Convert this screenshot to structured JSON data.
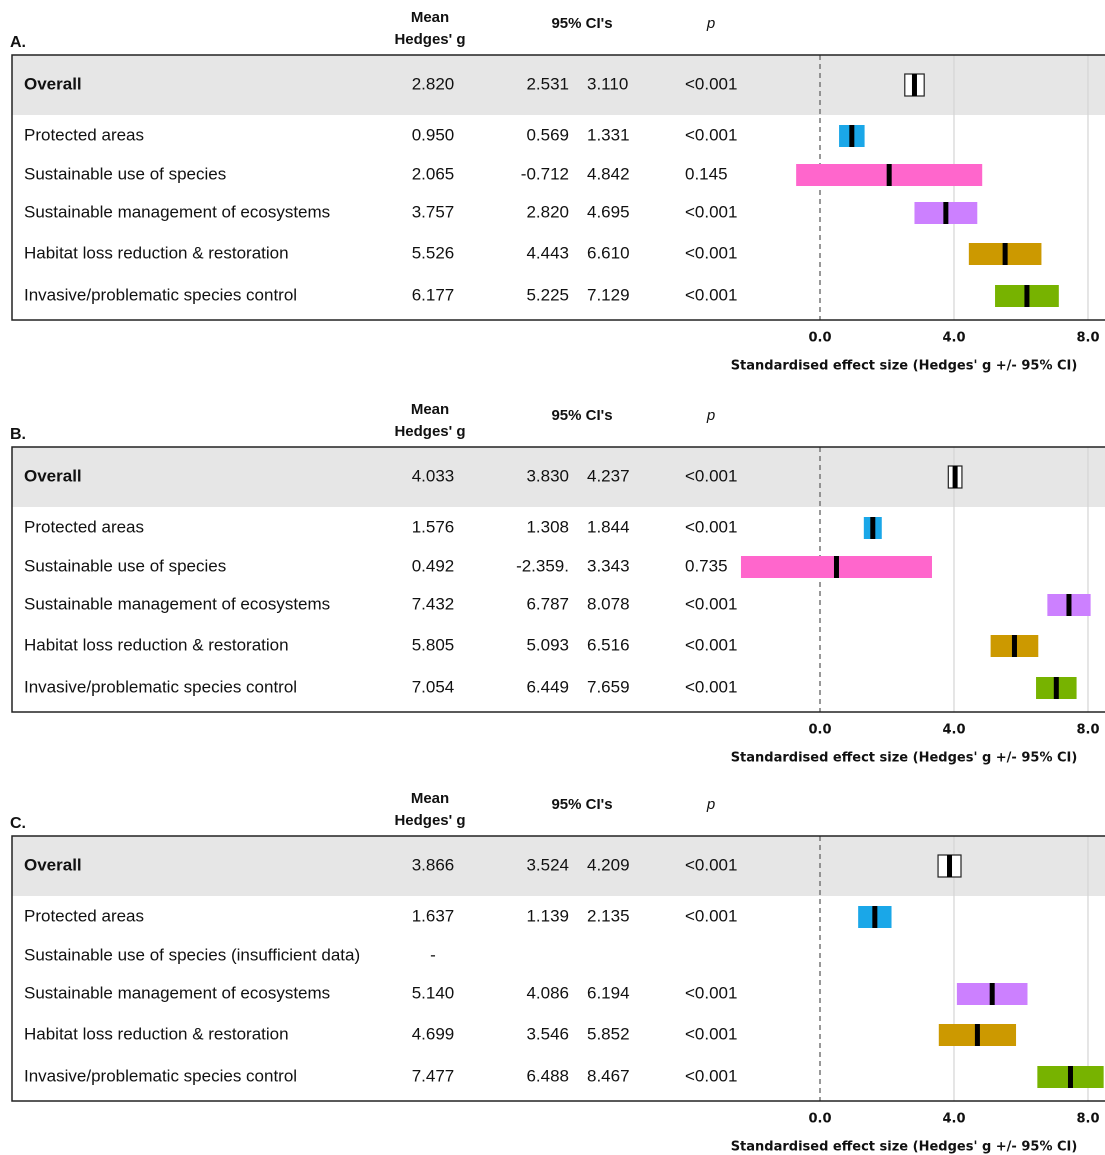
{
  "chart_data": [
    {
      "type": "forest",
      "panel": "A.",
      "mean_header": [
        "Mean",
        "Hedges' g"
      ],
      "ci_header": "95% CI's",
      "p_header": "p",
      "categories": [
        "Overall",
        "Protected areas",
        "Sustainable use of species",
        "Sustainable management of ecosystems",
        "Habitat loss reduction & restoration",
        "Invasive/problematic species control"
      ],
      "values": [
        2.82,
        0.95,
        2.065,
        3.757,
        5.526,
        6.177
      ],
      "value_labels": [
        "2.820",
        "0.950",
        "2.065",
        "3.757",
        "5.526",
        "6.177"
      ],
      "ci_low": [
        2.531,
        0.569,
        -0.712,
        2.82,
        4.443,
        5.225
      ],
      "ci_low_labels": [
        "2.531",
        "0.569",
        "-0.712",
        "2.820",
        "4.443",
        "5.225"
      ],
      "ci_high": [
        3.11,
        1.331,
        4.842,
        4.695,
        6.61,
        7.129
      ],
      "ci_high_labels": [
        "3.110",
        "1.331",
        "4.842",
        "4.695",
        "6.610",
        "7.129"
      ],
      "p": [
        "<0.001",
        "<0.001",
        "0.145",
        "<0.001",
        "<0.001",
        "<0.001"
      ],
      "colors": [
        "#ffffff",
        "#1aa7e8",
        "#ff66cc",
        "#cc80ff",
        "#cc9900",
        "#77b300"
      ],
      "xlim": [
        -2.4,
        8.5
      ],
      "xticks": [
        {
          "value": 0,
          "label": "0.0"
        },
        {
          "value": 4,
          "label": "4.0"
        },
        {
          "value": 8,
          "label": "8.0"
        }
      ],
      "xlabel": "Standardised effect size (Hedges' g +/- 95% CI)"
    },
    {
      "type": "forest",
      "panel": "B.",
      "mean_header": [
        "Mean",
        "Hedges' g"
      ],
      "ci_header": "95% CI's",
      "p_header": "p",
      "categories": [
        "Overall",
        "Protected areas",
        "Sustainable use of species",
        "Sustainable management of ecosystems",
        "Habitat loss reduction & restoration",
        "Invasive/problematic species control"
      ],
      "values": [
        4.033,
        1.576,
        0.492,
        7.432,
        5.805,
        7.054
      ],
      "value_labels": [
        "4.033",
        "1.576",
        "0.492",
        "7.432",
        "5.805",
        "7.054"
      ],
      "ci_low": [
        3.83,
        1.308,
        -2.359,
        6.787,
        5.093,
        6.449
      ],
      "ci_low_labels": [
        "3.830",
        "1.308",
        "-2.359.",
        "6.787",
        "5.093",
        "6.449"
      ],
      "ci_high": [
        4.237,
        1.844,
        3.343,
        8.078,
        6.516,
        7.659
      ],
      "ci_high_labels": [
        "4.237",
        "1.844",
        "3.343",
        "8.078",
        "6.516",
        "7.659"
      ],
      "p": [
        "<0.001",
        "<0.001",
        "0.735",
        "<0.001",
        "<0.001",
        "<0.001"
      ],
      "colors": [
        "#ffffff",
        "#1aa7e8",
        "#ff66cc",
        "#cc80ff",
        "#cc9900",
        "#77b300"
      ],
      "xlim": [
        -2.4,
        8.5
      ],
      "xticks": [
        {
          "value": 0,
          "label": "0.0"
        },
        {
          "value": 4,
          "label": "4.0"
        },
        {
          "value": 8,
          "label": "8.0"
        }
      ],
      "xlabel": "Standardised effect size (Hedges' g +/- 95% CI)"
    },
    {
      "type": "forest",
      "panel": "C.",
      "mean_header": [
        "Mean",
        "Hedges' g"
      ],
      "ci_header": "95% CI's",
      "p_header": "p",
      "categories": [
        "Overall",
        "Protected areas",
        "Sustainable use of species (insufficient data)",
        "Sustainable management of ecosystems",
        "Habitat loss reduction & restoration",
        "Invasive/problematic species control"
      ],
      "values": [
        3.866,
        1.637,
        null,
        5.14,
        4.699,
        7.477
      ],
      "value_labels": [
        "3.866",
        "1.637",
        "-",
        "5.140",
        "4.699",
        "7.477"
      ],
      "ci_low": [
        3.524,
        1.139,
        null,
        4.086,
        3.546,
        6.488
      ],
      "ci_low_labels": [
        "3.524",
        "1.139",
        null,
        "4.086",
        "3.546",
        "6.488"
      ],
      "ci_high": [
        4.209,
        2.135,
        null,
        6.194,
        5.852,
        8.467
      ],
      "ci_high_labels": [
        "4.209",
        "2.135",
        null,
        "6.194",
        "5.852",
        "8.467"
      ],
      "p": [
        "<0.001",
        "<0.001",
        null,
        "<0.001",
        "<0.001",
        "<0.001"
      ],
      "colors": [
        "#ffffff",
        "#1aa7e8",
        "#ff66cc",
        "#cc80ff",
        "#cc9900",
        "#77b300"
      ],
      "xlim": [
        -2.4,
        8.5
      ],
      "xticks": [
        {
          "value": 0,
          "label": "0.0"
        },
        {
          "value": 4,
          "label": "4.0"
        },
        {
          "value": 8,
          "label": "8.0"
        }
      ],
      "xlabel": "Standardised effect size (Hedges' g +/- 95% CI)"
    }
  ]
}
